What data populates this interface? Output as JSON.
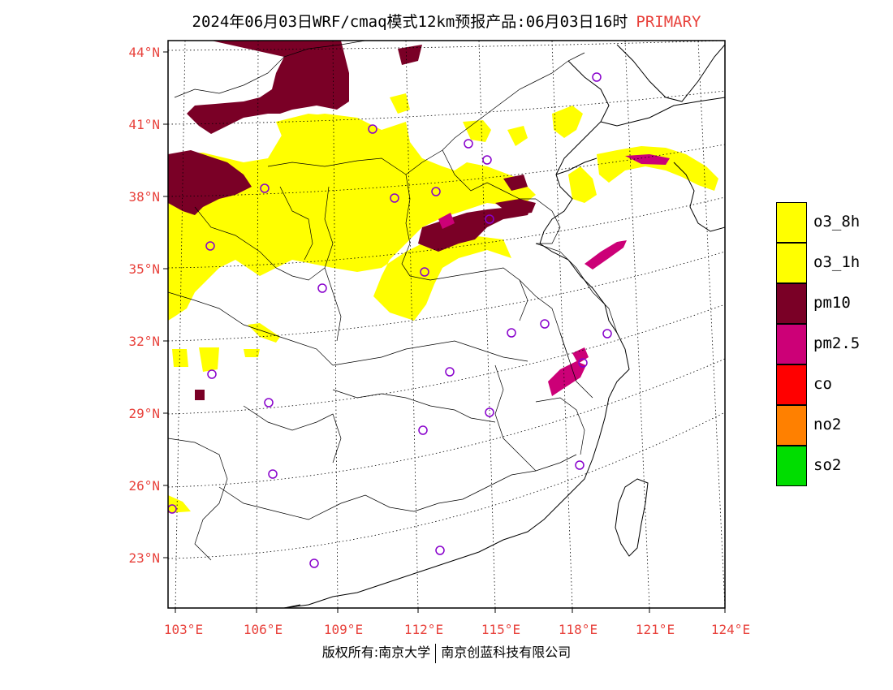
{
  "title": {
    "main": "2024年06月03日WRF/cmaq模式12km预报产品:06月03日16时",
    "tag": "PRIMARY"
  },
  "footer": {
    "left": "版权所有:南京大学",
    "right": "南京创蓝科技有限公司"
  },
  "axes": {
    "lat_labels": [
      "44°N",
      "41°N",
      "38°N",
      "35°N",
      "32°N",
      "29°N",
      "26°N",
      "23°N"
    ],
    "lon_labels": [
      "103°E",
      "106°E",
      "109°E",
      "112°E",
      "115°E",
      "118°E",
      "121°E",
      "124°E"
    ]
  },
  "legend": [
    {
      "label": "o3_8h",
      "color": "#ffff00"
    },
    {
      "label": "o3_1h",
      "color": "#ffff00"
    },
    {
      "label": "pm10",
      "color": "#7a0026"
    },
    {
      "label": "pm2.5",
      "color": "#cc0077"
    },
    {
      "label": "co",
      "color": "#ff0000"
    },
    {
      "label": "no2",
      "color": "#ff8000"
    },
    {
      "label": "so2",
      "color": "#00dd00"
    }
  ],
  "colors": {
    "axis_text": "#e8413b",
    "station": "#8800cc",
    "o3": "#ffff00",
    "pm10": "#7a0026",
    "pm25": "#cc0077"
  }
}
